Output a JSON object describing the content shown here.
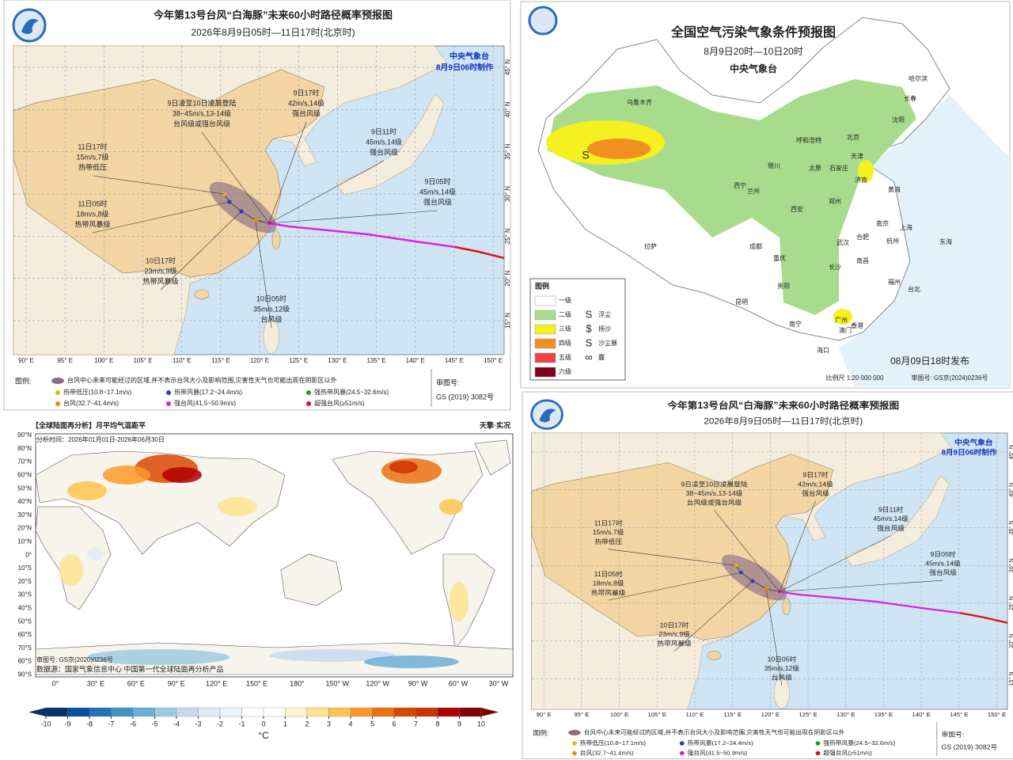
{
  "typhoon_maps": [
    {
      "title": "今年第13号台风“白海豚”未来60小时路径概率预报图",
      "subtitle": "2026年8月9日05时—11日17时(北京时)",
      "producer": [
        "中央气象台",
        "8月9日06时制作"
      ],
      "annotations": [
        [
          "11日17时",
          "15m/s,7级",
          "热带低压"
        ],
        [
          "9日凌至10日凌晨登陆",
          "38~45m/s,13-14级",
          "台风级或强台风级"
        ],
        [
          "9日17时",
          "42m/s,14级",
          "强台风级"
        ],
        [
          "9日11时",
          "45m/s,14级",
          "强台风级"
        ],
        [
          "9日05时",
          "45m/s,14级",
          "强台风级"
        ],
        [
          "11日05时",
          "18m/s,8级",
          "热带风暴级"
        ],
        [
          "10日17时",
          "23m/s,9级",
          "热带风暴级"
        ],
        [
          "10日05时",
          "35m/s,12级",
          "台风级"
        ]
      ],
      "lon_labels": [
        "90° E",
        "95° E",
        "100° E",
        "105° E",
        "110° E",
        "115° E",
        "120° E",
        "125° E",
        "130° E",
        "135° E",
        "140° E",
        "145° E",
        "150° E"
      ],
      "lat_labels": [
        "45° N",
        "40° N",
        "35° N",
        "30° N",
        "25° N",
        "20° N",
        "15° N"
      ],
      "legend": {
        "heading": "图例:",
        "cone": "台风中心未来可能经过的区域,并不表示台风大小及影响范围,灾害性天气也可能出现在阴影区以外",
        "items": [
          {
            "label": "热带低压(10.8~17.1m/s)",
            "color": "#e8b800"
          },
          {
            "label": "热带风暴(17.2~24.4m/s)",
            "color": "#1f3fd0"
          },
          {
            "label": "强热带风暴(24.5~32.6m/s)",
            "color": "#1a9a3a"
          },
          {
            "label": "台风(32.7~41.4m/s)",
            "color": "#f08a00"
          },
          {
            "label": "强台风(41.5~50.9m/s)",
            "color": "#e020e0"
          },
          {
            "label": "超强台风(≥51m/s)",
            "color": "#e01010"
          }
        ]
      },
      "approval": [
        "审图号:",
        "GS (2019) 3082号"
      ]
    },
    {
      "title": "今年第13号台风“白海豚”未来60小时路径概率预报图",
      "subtitle": "2026年8月9日05时—11日17时(北京时)",
      "producer": [
        "中央气象台",
        "8月9日06时制作"
      ],
      "annotations": [
        [
          "11日17时",
          "15m/s,7级",
          "热带低压"
        ],
        [
          "9日凌至10日凌晨登陆",
          "38~45m/s,13-14级",
          "台风级或强台风级"
        ],
        [
          "9日17时",
          "42m/s,14级",
          "强台风级"
        ],
        [
          "9日11时",
          "45m/s,14级",
          "强台风级"
        ],
        [
          "9日05时",
          "45m/s,14级",
          "强台风级"
        ],
        [
          "11日05时",
          "18m/s,8级",
          "热带风暴级"
        ],
        [
          "10日17时",
          "23m/s,9级",
          "热带风暴级"
        ],
        [
          "10日05时",
          "35m/s,12级",
          "台风级"
        ]
      ],
      "lon_labels": [
        "90° E",
        "95° E",
        "100° E",
        "105° E",
        "110° E",
        "115° E",
        "120° E",
        "125° E",
        "130° E",
        "135° E",
        "140° E",
        "145° E",
        "150° E"
      ],
      "lat_labels": [
        "45° N",
        "40° N",
        "35° N",
        "30° N",
        "25° N",
        "20° N",
        "15° N"
      ],
      "legend": {
        "heading": "图例:",
        "cone": "台风中心未来可能经过的区域,并不表示台风大小及影响范围,灾害性天气也可能出现在阴影区以外",
        "items": [
          {
            "label": "热带低压(10.8~17.1m/s)",
            "color": "#e8b800"
          },
          {
            "label": "热带风暴(17.2~24.4m/s)",
            "color": "#1f3fd0"
          },
          {
            "label": "强热带风暴(24.5~32.6m/s)",
            "color": "#1a9a3a"
          },
          {
            "label": "台风(32.7~41.4m/s)",
            "color": "#f08a00"
          },
          {
            "label": "强台风(41.5~50.9m/s)",
            "color": "#e020e0"
          },
          {
            "label": "超强台风(≥51m/s)",
            "color": "#e01010"
          }
        ]
      },
      "approval": [
        "审图号:",
        "GS (2019) 3082号"
      ]
    }
  ],
  "pollution_map": {
    "title": "全国空气污染气象条件预报图",
    "period": "8月9日20时—10日20时",
    "agency": "中央气象台",
    "legend": {
      "heading": "图例",
      "levels": [
        {
          "label": "一级",
          "color": "#ffffff"
        },
        {
          "label": "二级",
          "color": "#a8dc8c"
        },
        {
          "label": "三级",
          "color": "#f5f020"
        },
        {
          "label": "四级",
          "color": "#f09020"
        },
        {
          "label": "五级",
          "color": "#f04040"
        },
        {
          "label": "六级",
          "color": "#800020"
        }
      ],
      "symbols": [
        {
          "symbol": "S",
          "label": "浮尘"
        },
        {
          "symbol": "$",
          "label": "扬沙"
        },
        {
          "symbol": "S",
          "label": "沙尘暴"
        },
        {
          "symbol": "∞",
          "label": "霾"
        }
      ]
    },
    "cities": [
      "乌鲁木齐",
      "哈尔滨",
      "长春",
      "沈阳",
      "呼和浩特",
      "北京",
      "天津",
      "银川",
      "太原",
      "石家庄",
      "济南",
      "西宁",
      "兰州",
      "郑州",
      "西安",
      "南京",
      "上海",
      "合肥",
      "武汉",
      "杭州",
      "成都",
      "重庆",
      "长沙",
      "南昌",
      "拉萨",
      "贵阳",
      "福州",
      "台北",
      "昆明",
      "南宁",
      "广州",
      "香港",
      "澳门",
      "海口"
    ],
    "seas": [
      "黄海",
      "东海"
    ],
    "issued": "08月09日18时发布",
    "scale": "比例尺 1:20 000 000",
    "approval": "审图号: GS京(2024)0236号"
  },
  "temperature_map": {
    "title": "【全球陆面再分析】月平均气温距平",
    "analysis_time": "分析时间：2026年01月01日-2026年06月30日",
    "brand": "天擎·实况",
    "approval": "审图号: GS京(2020)0236号",
    "source": "数据源：国家气象信息中心  中国第一代全球陆面再分析产品",
    "lat_labels": [
      "90°N",
      "80°N",
      "70°N",
      "60°N",
      "50°N",
      "40°N",
      "30°N",
      "20°N",
      "10°N",
      "0°",
      "10°S",
      "20°S",
      "30°S",
      "40°S",
      "50°S",
      "60°S",
      "70°S",
      "80°S",
      "90°S"
    ],
    "lon_labels": [
      "0°",
      "30° E",
      "60° E",
      "90° E",
      "120° E",
      "150° E",
      "180°",
      "150° W",
      "120° W",
      "90° W",
      "60° W",
      "30° W"
    ],
    "colorbar": {
      "ticks": [
        -10,
        -9,
        -8,
        -7,
        -6,
        -5,
        -4,
        -3,
        -2,
        -1,
        0,
        1,
        2,
        3,
        4,
        5,
        6,
        7,
        8,
        9,
        10
      ],
      "colors": [
        "#08306b",
        "#08519c",
        "#2171b5",
        "#4292c6",
        "#6baed6",
        "#9ecae1",
        "#c6dbef",
        "#deebf7",
        "#eef5fb",
        "#ffffff",
        "#ffffff",
        "#fff5d0",
        "#fee391",
        "#fec44f",
        "#fe9929",
        "#ec7014",
        "#d94801",
        "#cc3300",
        "#b30000",
        "#800000"
      ],
      "unit": "°C"
    }
  }
}
